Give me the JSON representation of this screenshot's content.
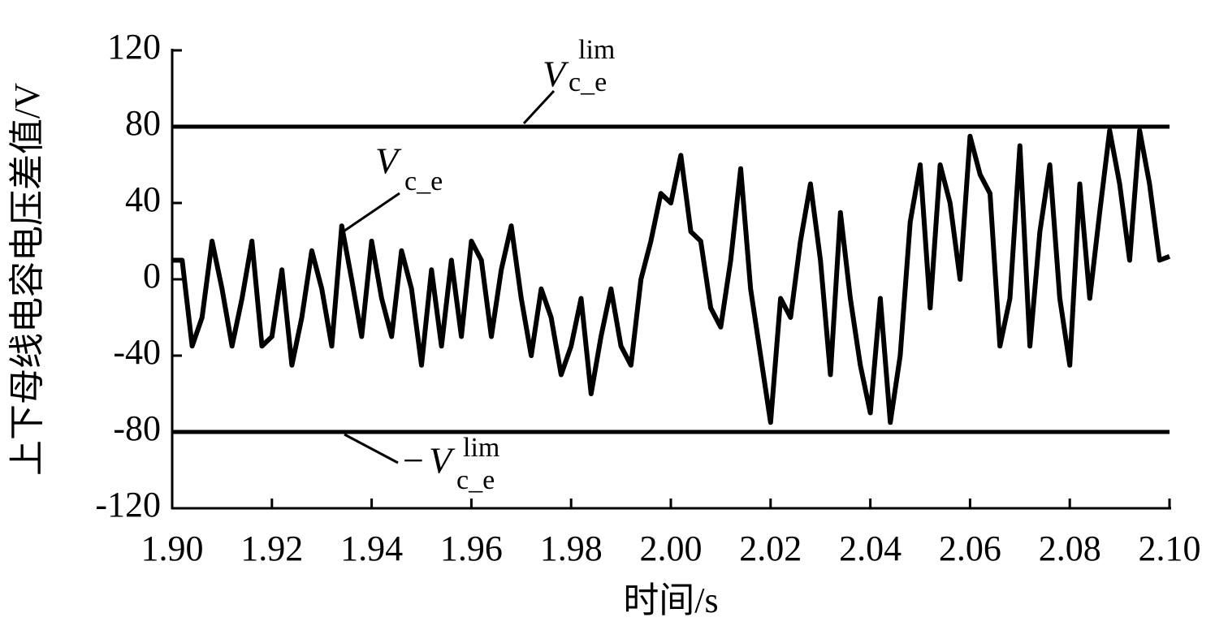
{
  "chart_data": {
    "type": "line",
    "ylabel": "上下母线电容电压差值/V",
    "xlabel": "时间/s",
    "xlim": [
      1.9,
      2.1
    ],
    "ylim": [
      -120,
      120
    ],
    "xticks": [
      {
        "value": 1.9,
        "label": "1.90"
      },
      {
        "value": 1.92,
        "label": "1.92"
      },
      {
        "value": 1.94,
        "label": "1.94"
      },
      {
        "value": 1.96,
        "label": "1.96"
      },
      {
        "value": 1.98,
        "label": "1.98"
      },
      {
        "value": 2.0,
        "label": "2.00"
      },
      {
        "value": 2.02,
        "label": "2.02"
      },
      {
        "value": 2.04,
        "label": "2.04"
      },
      {
        "value": 2.06,
        "label": "2.06"
      },
      {
        "value": 2.08,
        "label": "2.08"
      },
      {
        "value": 2.1,
        "label": "2.10"
      }
    ],
    "yticks": [
      120,
      80,
      40,
      0,
      -40,
      -80,
      -120
    ],
    "limits": [
      80,
      -80
    ],
    "color": "#000000",
    "x": [
      1.9,
      1.902,
      1.904,
      1.906,
      1.908,
      1.91,
      1.912,
      1.914,
      1.916,
      1.918,
      1.92,
      1.922,
      1.924,
      1.926,
      1.928,
      1.93,
      1.932,
      1.934,
      1.936,
      1.938,
      1.94,
      1.942,
      1.944,
      1.946,
      1.948,
      1.95,
      1.952,
      1.954,
      1.956,
      1.958,
      1.96,
      1.962,
      1.964,
      1.966,
      1.968,
      1.97,
      1.972,
      1.974,
      1.976,
      1.978,
      1.98,
      1.982,
      1.984,
      1.986,
      1.988,
      1.99,
      1.992,
      1.994,
      1.996,
      1.998,
      2.0,
      2.002,
      2.004,
      2.006,
      2.008,
      2.01,
      2.012,
      2.014,
      2.016,
      2.018,
      2.02,
      2.022,
      2.024,
      2.026,
      2.028,
      2.03,
      2.032,
      2.034,
      2.036,
      2.038,
      2.04,
      2.042,
      2.044,
      2.046,
      2.048,
      2.05,
      2.052,
      2.054,
      2.056,
      2.058,
      2.06,
      2.062,
      2.064,
      2.066,
      2.068,
      2.07,
      2.072,
      2.074,
      2.076,
      2.078,
      2.08,
      2.082,
      2.084,
      2.086,
      2.088,
      2.09,
      2.092,
      2.094,
      2.096,
      2.098,
      2.1
    ],
    "values": [
      10,
      10,
      -35,
      -20,
      20,
      -5,
      -35,
      -10,
      20,
      -35,
      -30,
      5,
      -45,
      -20,
      15,
      -5,
      -35,
      28,
      0,
      -30,
      20,
      -10,
      -30,
      15,
      -5,
      -45,
      5,
      -35,
      10,
      -30,
      20,
      10,
      -30,
      5,
      28,
      -10,
      -40,
      -5,
      -20,
      -50,
      -35,
      -10,
      -60,
      -30,
      -5,
      -35,
      -45,
      0,
      20,
      45,
      40,
      65,
      25,
      20,
      -15,
      -25,
      10,
      58,
      -5,
      -40,
      -75,
      -10,
      -20,
      20,
      50,
      10,
      -50,
      35,
      -10,
      -45,
      -70,
      -10,
      -75,
      -40,
      30,
      60,
      -15,
      60,
      40,
      0,
      75,
      55,
      45,
      -35,
      -10,
      70,
      -35,
      25,
      60,
      -10,
      -45,
      50,
      -10,
      35,
      78,
      50,
      10,
      78,
      50,
      10,
      12
    ],
    "annotations": [
      {
        "symbol": "V",
        "subscript": "c_e",
        "superscript": "lim"
      },
      {
        "symbol": "V",
        "subscript": "c_e"
      },
      {
        "sign": "−",
        "symbol": "V",
        "subscript": "c_e",
        "superscript": "lim"
      }
    ]
  }
}
